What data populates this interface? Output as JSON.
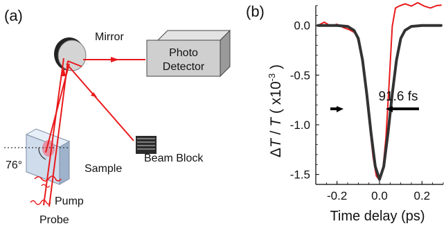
{
  "panel_a": {
    "label": "(a)",
    "mirror_label": "Mirror",
    "detector_label_line1": "Photo",
    "detector_label_line2": "Detector",
    "beam_block_label": "Beam Block",
    "sample_label": "Sample",
    "angle_label": "76°",
    "pump_label": "Pump",
    "probe_label": "Probe"
  },
  "panel_b": {
    "label": "(b)",
    "fwhm_label": "91.6 fs",
    "ylabel_parts": {
      "delta": "Δ",
      "T1": "T",
      "slash": " / ",
      "T2": "T",
      "scale_prefix": " ( x10",
      "scale_exp": "-3",
      "scale_suffix": " )"
    }
  },
  "chart_data": {
    "type": "line",
    "xlabel": "Time delay (ps)",
    "xlim": [
      -0.3,
      0.3
    ],
    "ylim": [
      -1.6,
      0.2
    ],
    "xticks": [
      -0.2,
      0.0,
      0.2
    ],
    "xtick_labels": [
      "-0.2",
      "0.0",
      "0.2"
    ],
    "yticks": [
      0.0,
      -0.5,
      -1.0,
      -1.5
    ],
    "ytick_labels": [
      "0.0",
      "-0.5",
      "-1.0",
      "-1.5"
    ],
    "grid": false,
    "series": [
      {
        "color": "#e8191b",
        "x": [
          -0.29,
          -0.26,
          -0.23,
          -0.2,
          -0.17,
          -0.14,
          -0.11,
          -0.09,
          -0.07,
          -0.05,
          -0.03,
          -0.015,
          0.0,
          0.015,
          0.03,
          0.045,
          0.06,
          0.075,
          0.09,
          0.12,
          0.15,
          0.18,
          0.21,
          0.24,
          0.27,
          0.29
        ],
        "y": [
          0.0,
          0.02,
          -0.02,
          0.01,
          -0.01,
          -0.03,
          -0.08,
          -0.25,
          -0.55,
          -0.95,
          -1.32,
          -1.5,
          -1.55,
          -1.48,
          -1.15,
          -0.6,
          0.0,
          0.19,
          0.2,
          0.21,
          0.18,
          0.22,
          0.2,
          0.19,
          0.21,
          0.2
        ]
      },
      {
        "color": "#333333",
        "x": [
          -0.29,
          -0.2,
          -0.15,
          -0.12,
          -0.1,
          -0.08,
          -0.06,
          -0.04,
          -0.02,
          0.0,
          0.02,
          0.04,
          0.06,
          0.08,
          0.1,
          0.12,
          0.15,
          0.2,
          0.29
        ],
        "y": [
          0.0,
          0.0,
          -0.01,
          -0.05,
          -0.13,
          -0.35,
          -0.69,
          -1.08,
          -1.42,
          -1.55,
          -1.42,
          -1.08,
          -0.69,
          -0.35,
          -0.13,
          -0.05,
          -0.01,
          0.0,
          0.0
        ]
      }
    ]
  }
}
